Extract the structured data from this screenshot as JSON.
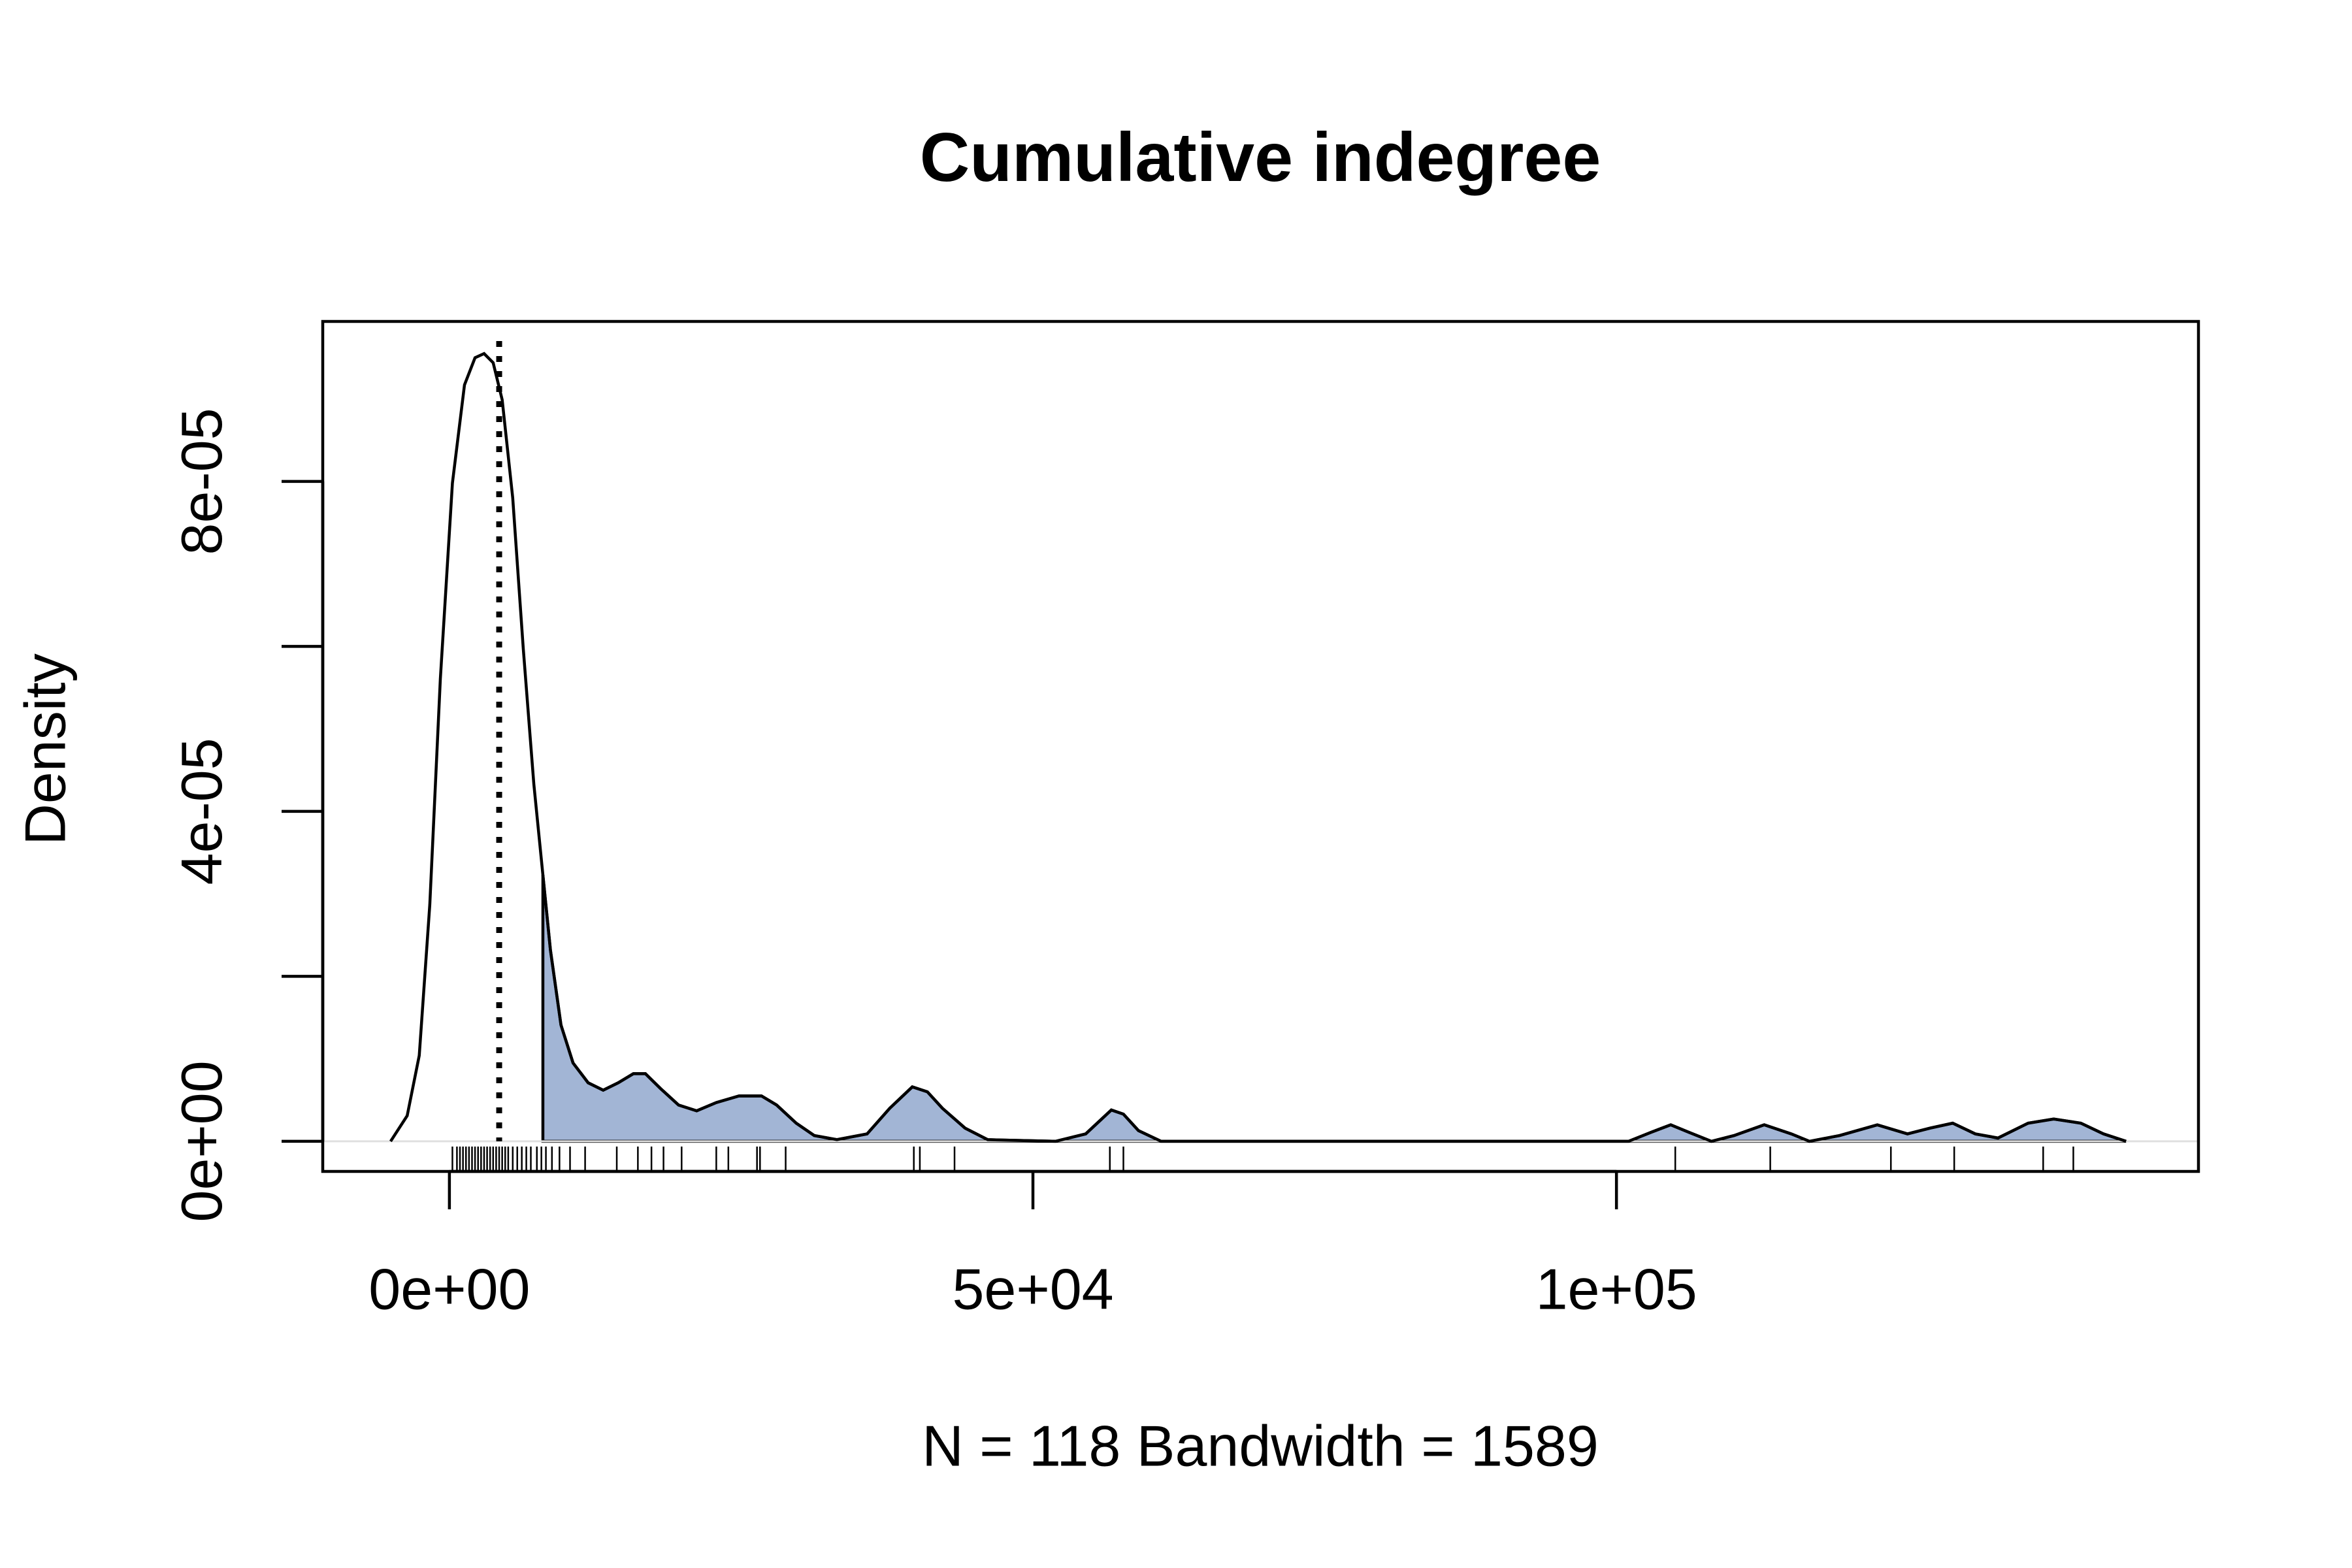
{
  "chart_data": {
    "type": "density",
    "title": "Cumulative indegree",
    "xlabel": "N = 118   Bandwidth = 1589",
    "ylabel": "Density",
    "x": [
      -5039,
      -3618,
      -2584,
      -1680,
      -775,
      258,
      1292,
      2196,
      2972,
      3747,
      4522,
      5426,
      6331,
      7235,
      8010,
      8656,
      9561,
      10594,
      11886,
      13178,
      14470,
      15762,
      16796,
      18088,
      19638,
      21189,
      22868,
      24806,
      26744,
      28036,
      29715,
      31266,
      33204,
      35788,
      37726,
      39664,
      40956,
      42248,
      44186,
      46124,
      51938,
      54522,
      56719,
      57752,
      59044,
      60982,
      101034,
      102972,
      104652,
      106202,
      108140,
      110078,
      112662,
      114988,
      116538,
      119122,
      122352,
      124936,
      126874,
      128812,
      130750,
      132688,
      135272,
      137468,
      139794,
      141732,
      143670
    ],
    "y": [
      0,
      3.1e-06,
      1.04e-05,
      2.87e-05,
      5.61e-05,
      7.98e-05,
      9.17e-05,
      9.5e-05,
      9.55e-05,
      9.44e-05,
      8.99e-05,
      7.8e-05,
      5.97e-05,
      4.33e-05,
      3.23e-05,
      2.32e-05,
      1.41e-05,
      9.5e-06,
      7.1e-06,
      6.2e-06,
      7.1e-06,
      8.2e-06,
      8.2e-06,
      6.4e-06,
      4.4e-06,
      3.7e-06,
      4.7e-06,
      5.5e-06,
      5.5e-06,
      4.4e-06,
      2.2e-06,
      7e-07,
      2e-07,
      9e-07,
      4e-06,
      6.6e-06,
      6e-06,
      4e-06,
      1.6e-06,
      2e-07,
      0,
      9e-07,
      3.8e-06,
      3.3e-06,
      1.3e-06,
      0,
      0,
      1.1e-06,
      2e-06,
      1.1e-06,
      0,
      7e-07,
      2e-06,
      9e-07,
      0,
      7e-07,
      2e-06,
      9e-07,
      1.6e-06,
      2.2e-06,
      9e-07,
      4e-07,
      2.2e-06,
      2.7e-06,
      2.2e-06,
      9e-07,
      0
    ],
    "rug": [
      258,
      646,
      904,
      1163,
      1421,
      1680,
      1938,
      2196,
      2455,
      2713,
      2972,
      3230,
      3488,
      3747,
      4005,
      4264,
      4522,
      4780,
      5039,
      5426,
      5814,
      6202,
      6589,
      6977,
      7494,
      7881,
      8269,
      8786,
      9432,
      10336,
      11628,
      14341,
      16150,
      17313,
      18346,
      19897,
      22868,
      23902,
      26357,
      26615,
      28812,
      39794,
      40310,
      43282,
      56590,
      57752,
      105040,
      113179,
      123515,
      128942,
      136564,
      139148
    ],
    "vline": 4264,
    "shade_from": 8010,
    "shade_color": "#a2b5d5",
    "line_color": "#000000",
    "xlim": [
      -10853,
      149870
    ],
    "ylim": [
      -3.65e-06,
      9.94e-05
    ],
    "xticks": [
      {
        "value": 0,
        "label": "0e+00"
      },
      {
        "value": 50000,
        "label": "5e+04"
      },
      {
        "value": 100000,
        "label": "1e+05"
      }
    ],
    "yticks": [
      {
        "value": 0,
        "label": "0e+00"
      },
      {
        "value": 4e-05,
        "label": "4e-05"
      },
      {
        "value": 8e-05,
        "label": "8e-05"
      }
    ],
    "yminor_ticks": [
      2e-05,
      6e-05
    ]
  }
}
